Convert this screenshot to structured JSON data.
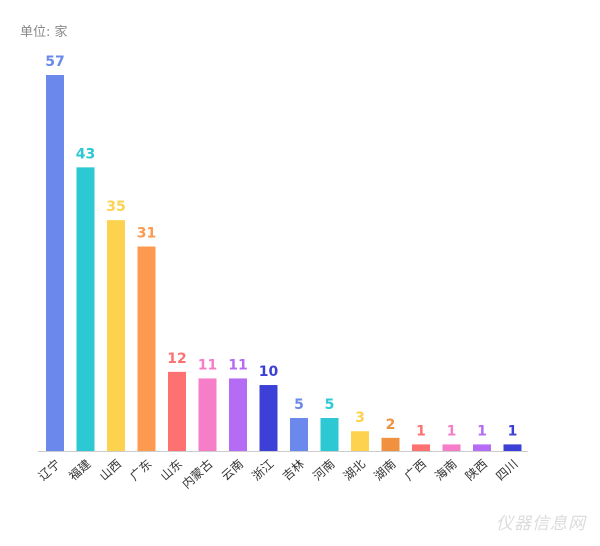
{
  "unit_label": "单位: 家",
  "watermark": "仪器信息网",
  "chart_data": {
    "type": "bar",
    "title": "",
    "xlabel": "",
    "ylabel": "",
    "ylim": [
      0,
      57
    ],
    "grid": false,
    "legend": "none",
    "categories": [
      "辽宁",
      "福建",
      "山西",
      "广东",
      "山东",
      "内蒙古",
      "云南",
      "浙江",
      "吉林",
      "河南",
      "湖北",
      "湖南",
      "广西",
      "海南",
      "陕西",
      "四川"
    ],
    "values": [
      57,
      43,
      35,
      31,
      12,
      11,
      11,
      10,
      5,
      5,
      3,
      2,
      1,
      1,
      1,
      1
    ],
    "colors": [
      "#6b88ec",
      "#2cc8d4",
      "#fdd24f",
      "#fd9a4f",
      "#fd7171",
      "#f67ec8",
      "#b46cf4",
      "#3c40d6",
      "#6b88ec",
      "#2cc8d4",
      "#fdd24f",
      "#f0913f",
      "#fd7171",
      "#f67ec8",
      "#b46cf4",
      "#3c40d6"
    ]
  }
}
